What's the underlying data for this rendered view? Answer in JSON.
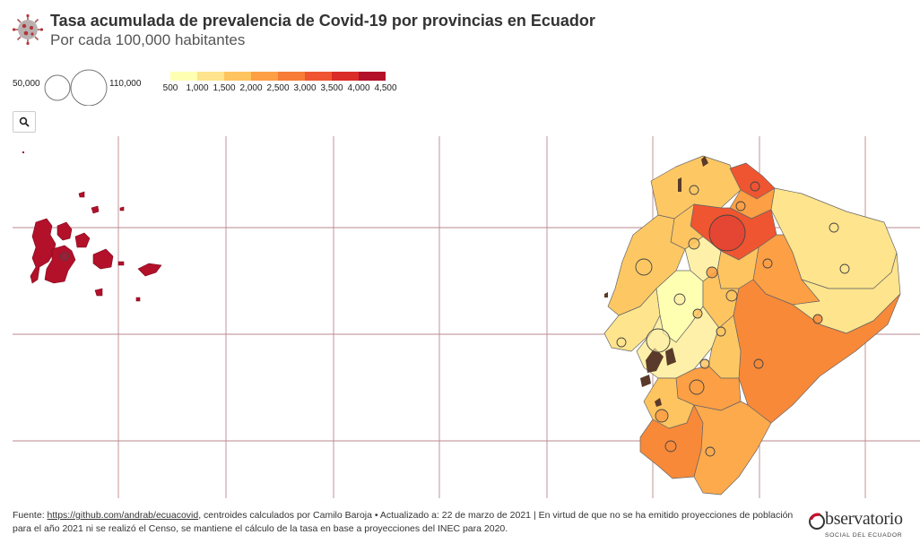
{
  "header": {
    "title": "Tasa acumulada de prevalencia de Covid-19 por provincias en Ecuador",
    "subtitle": "Por cada 100,000 habitantes",
    "icon": "virus-icon"
  },
  "size_legend": {
    "small_label": "50,000",
    "large_label": "110,000"
  },
  "color_legend": {
    "colors": [
      "#ffffb2",
      "#fee48c",
      "#fec460",
      "#fd9f44",
      "#f77c36",
      "#ef5530",
      "#da2c28",
      "#b3102a"
    ],
    "ticks": [
      "500",
      "1,000",
      "1,500",
      "2,000",
      "2,500",
      "3,000",
      "3,500",
      "4,000",
      "4,500"
    ]
  },
  "controls": {
    "search_icon": "search-icon"
  },
  "map": {
    "background": "#ffffff",
    "grid_color": "#b07a80"
  },
  "footer": {
    "source_prefix": "Fuente: ",
    "source_link": "https://github.com/andrab/ecuacovid",
    "text_rest": ", centroides calculados por Camilo Baroja • Actualizado a: 22 de marzo de 2021 | En virtud de que no se ha emitido proyecciones de población para el año 2021 ni se realizó el Censo, se mantiene el cálculo de la tasa en base a proyecciones del INEC para 2020."
  },
  "brand": {
    "name": "bservatorio",
    "subname": "SOCIAL DEL ECUADOR",
    "accent": "#c8102e"
  }
}
